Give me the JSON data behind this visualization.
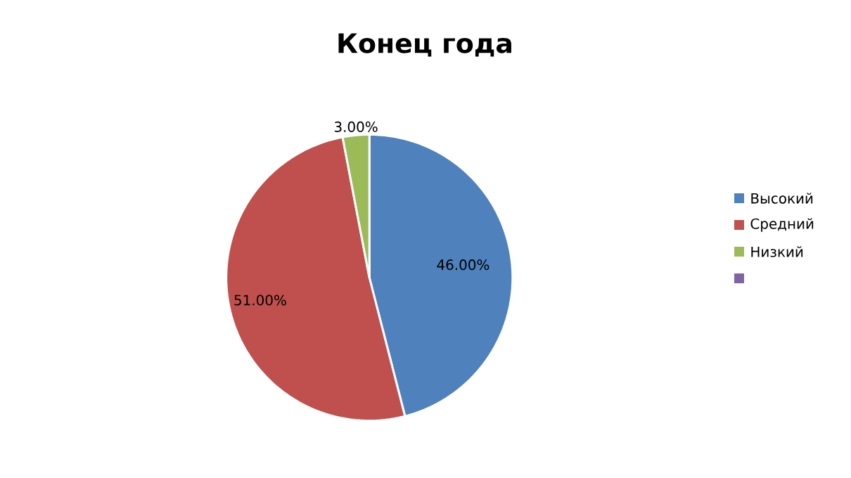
{
  "chart_data": {
    "type": "pie",
    "title": "Конец года",
    "categories": [
      "Высокий",
      "Средний",
      "Низкий",
      null
    ],
    "values": [
      46,
      51,
      3,
      0
    ],
    "value_labels": [
      "46.00%",
      "51.00%",
      "3.00%",
      null
    ],
    "colors": [
      "#4f81bd",
      "#c0504d",
      "#9bbb59",
      "#8064a2"
    ],
    "legend": "right"
  }
}
